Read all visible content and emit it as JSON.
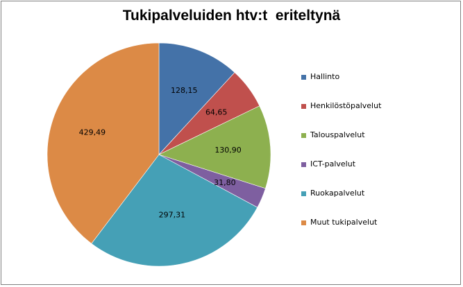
{
  "chart_data": {
    "type": "pie",
    "title": "Tukipalveluiden htv:t  eriteltynä",
    "categories": [
      "Hallinto",
      "Henkilöstöpalvelut",
      "Talouspalvelut",
      "ICT-palvelut",
      "Ruokapalvelut",
      "Muut tukipalvelut"
    ],
    "values": [
      128.15,
      64.65,
      130.9,
      31.8,
      297.31,
      429.49
    ],
    "data_labels": [
      "128,15",
      "64,65",
      "130,90",
      "31,80",
      "297,31",
      "429,49"
    ],
    "colors": [
      "#4472a8",
      "#c0504d",
      "#8db04f",
      "#7e5fa0",
      "#45a0b6",
      "#dc8a46"
    ],
    "legend_position": "right",
    "start_angle": "12 o'clock",
    "direction": "clockwise"
  }
}
